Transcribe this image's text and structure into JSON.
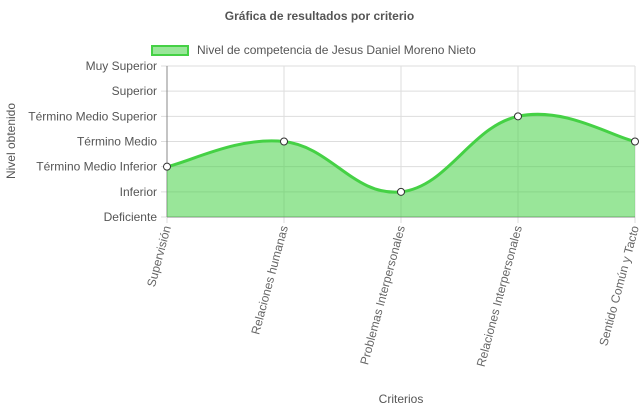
{
  "chart_data": {
    "type": "area",
    "title": "Gráfica de resultados por criterio",
    "xlabel": "Criterios",
    "ylabel": "Nivel obtenido",
    "categories": [
      "Supervisión",
      "Relaciones humanas",
      "Problemas Interpersonales",
      "Relaciones Interpersonales",
      "Sentido Común y Tacto"
    ],
    "y_levels": [
      "Deficiente",
      "Inferior",
      "Término Medio Inferior",
      "Término Medio",
      "Término Medio Superior",
      "Superior",
      "Muy Superior"
    ],
    "series": [
      {
        "name": "Nivel de competencia de Jesus Daniel Moreno Nieto",
        "values": [
          2,
          3,
          1,
          4,
          3
        ],
        "value_labels": [
          "Término Medio Inferior",
          "Término Medio",
          "Inferior",
          "Término Medio Superior",
          "Término Medio"
        ]
      }
    ],
    "ylim": [
      0,
      6
    ],
    "grid": true,
    "legend_position": "top",
    "colors": {
      "line": "#45d145",
      "fill": "rgba(69,209,69,0.55)",
      "grid": "#dddddd",
      "axis": "#888888"
    }
  }
}
